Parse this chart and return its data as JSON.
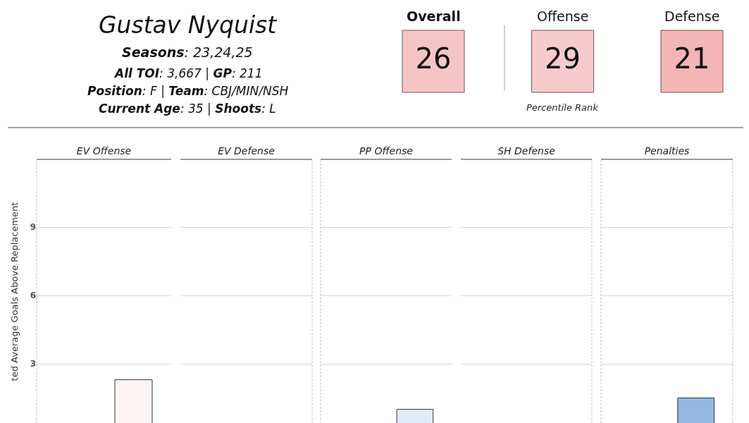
{
  "chart_data": [
    {
      "type": "other",
      "title": "Gustav Nyquist",
      "annotations": [
        "Seasons: 23,24,25",
        "All TOI: 3,667 | GP: 211",
        "Position: F | Team: CBJ/MIN/NSH",
        "Current Age: 35 | Shoots: L"
      ]
    },
    {
      "type": "other",
      "categories": [
        "Overall",
        "Offense",
        "Defense"
      ],
      "values": [
        26,
        29,
        21
      ],
      "colors": [
        "#f5c5c6",
        "#f7cbcc",
        "#f4b5b5"
      ],
      "data_labels": true,
      "xlabel": "Percentile Rank"
    },
    {
      "type": "bar",
      "ylabel": "ted Average Goals Above Replacement",
      "categories": [
        "EV Offense",
        "EV Defense",
        "PP Offense",
        "SH Defense",
        "Penalties"
      ],
      "series": [
        {
          "values": [
            null,
            null,
            null,
            null,
            null
          ]
        },
        {
          "colors": [
            "#fdf5f3",
            null,
            "#e2ebf8",
            null,
            "#94b8e0"
          ],
          "values": [
            2.3,
            null,
            1.0,
            null,
            1.5
          ]
        }
      ],
      "ylim": [
        0.4,
        11.95
      ],
      "yticks": [
        3,
        6,
        9
      ],
      "grid": "y"
    }
  ]
}
